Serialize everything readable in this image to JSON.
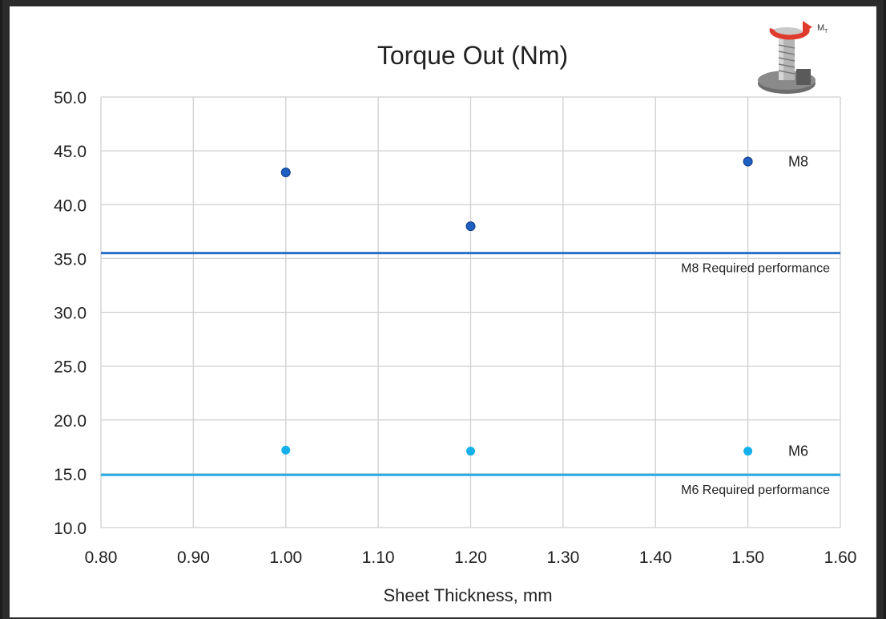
{
  "chart_data": {
    "type": "scatter",
    "title": "Torque Out (Nm)",
    "xlabel": "Sheet Thickness, mm",
    "ylabel": "",
    "xlim": [
      0.8,
      1.6
    ],
    "ylim": [
      10,
      50
    ],
    "x_ticks": [
      "0.80",
      "0.90",
      "1.00",
      "1.10",
      "1.20",
      "1.30",
      "1.40",
      "1.50",
      "1.60"
    ],
    "y_ticks": [
      "10.0",
      "15.0",
      "20.0",
      "25.0",
      "30.0",
      "35.0",
      "40.0",
      "45.0",
      "50.0"
    ],
    "grid": true,
    "series": [
      {
        "name": "M8",
        "color": "#1f5fc4",
        "x": [
          1.0,
          1.2,
          1.5
        ],
        "y": [
          43.0,
          38.0,
          44.0
        ]
      },
      {
        "name": "M6",
        "color": "#15b0ea",
        "x": [
          1.0,
          1.2,
          1.5
        ],
        "y": [
          17.2,
          17.1,
          17.1
        ]
      }
    ],
    "reference_lines": [
      {
        "label": "M8 Required performance",
        "y": 35.5,
        "color": "#2770c9"
      },
      {
        "label": "M6 Required performance",
        "y": 14.9,
        "color": "#29a9e6"
      }
    ],
    "icon": {
      "name": "torque-bolt-icon",
      "caption": "M",
      "subscript": "T",
      "arrow_color": "#e03a2c"
    }
  }
}
